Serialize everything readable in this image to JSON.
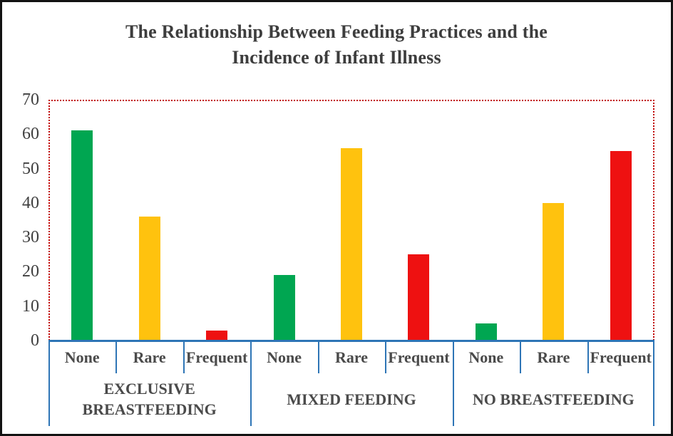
{
  "title": {
    "line1": "The Relationship Between Feeding Practices and the",
    "line2": "Incidence of Infant Illness"
  },
  "chart_data": {
    "type": "bar",
    "title": "The Relationship Between Feeding Practices and the Incidence of Infant Illness",
    "xlabel": "",
    "ylabel": "",
    "ylim": [
      0,
      70
    ],
    "yticks": [
      0,
      10,
      20,
      30,
      40,
      50,
      60,
      70
    ],
    "grid": false,
    "legend": "none",
    "categories": [
      "None",
      "Rare",
      "Frequent"
    ],
    "groups": [
      {
        "label": "EXCLUSIVE BREASTFEEDING",
        "categories": [
          "None",
          "Rare",
          "Frequent"
        ],
        "values": [
          61,
          36,
          3
        ]
      },
      {
        "label": "MIXED FEEDING",
        "categories": [
          "None",
          "Rare",
          "Frequent"
        ],
        "values": [
          19,
          56,
          25
        ]
      },
      {
        "label": "NO BREASTFEEDING",
        "categories": [
          "None",
          "Rare",
          "Frequent"
        ],
        "values": [
          5,
          40,
          55
        ]
      }
    ],
    "category_colors": {
      "None": "#00a651",
      "Rare": "#ffc20e",
      "Frequent": "#ee1111"
    }
  },
  "colors": {
    "bar_none": "#00a651",
    "bar_rare": "#ffc20e",
    "bar_frequent": "#ee1111",
    "axis_blue": "#2e75b6",
    "plot_border_red": "#c00000",
    "text_gray": "#3d3d3d",
    "frame_black": "#121212"
  }
}
